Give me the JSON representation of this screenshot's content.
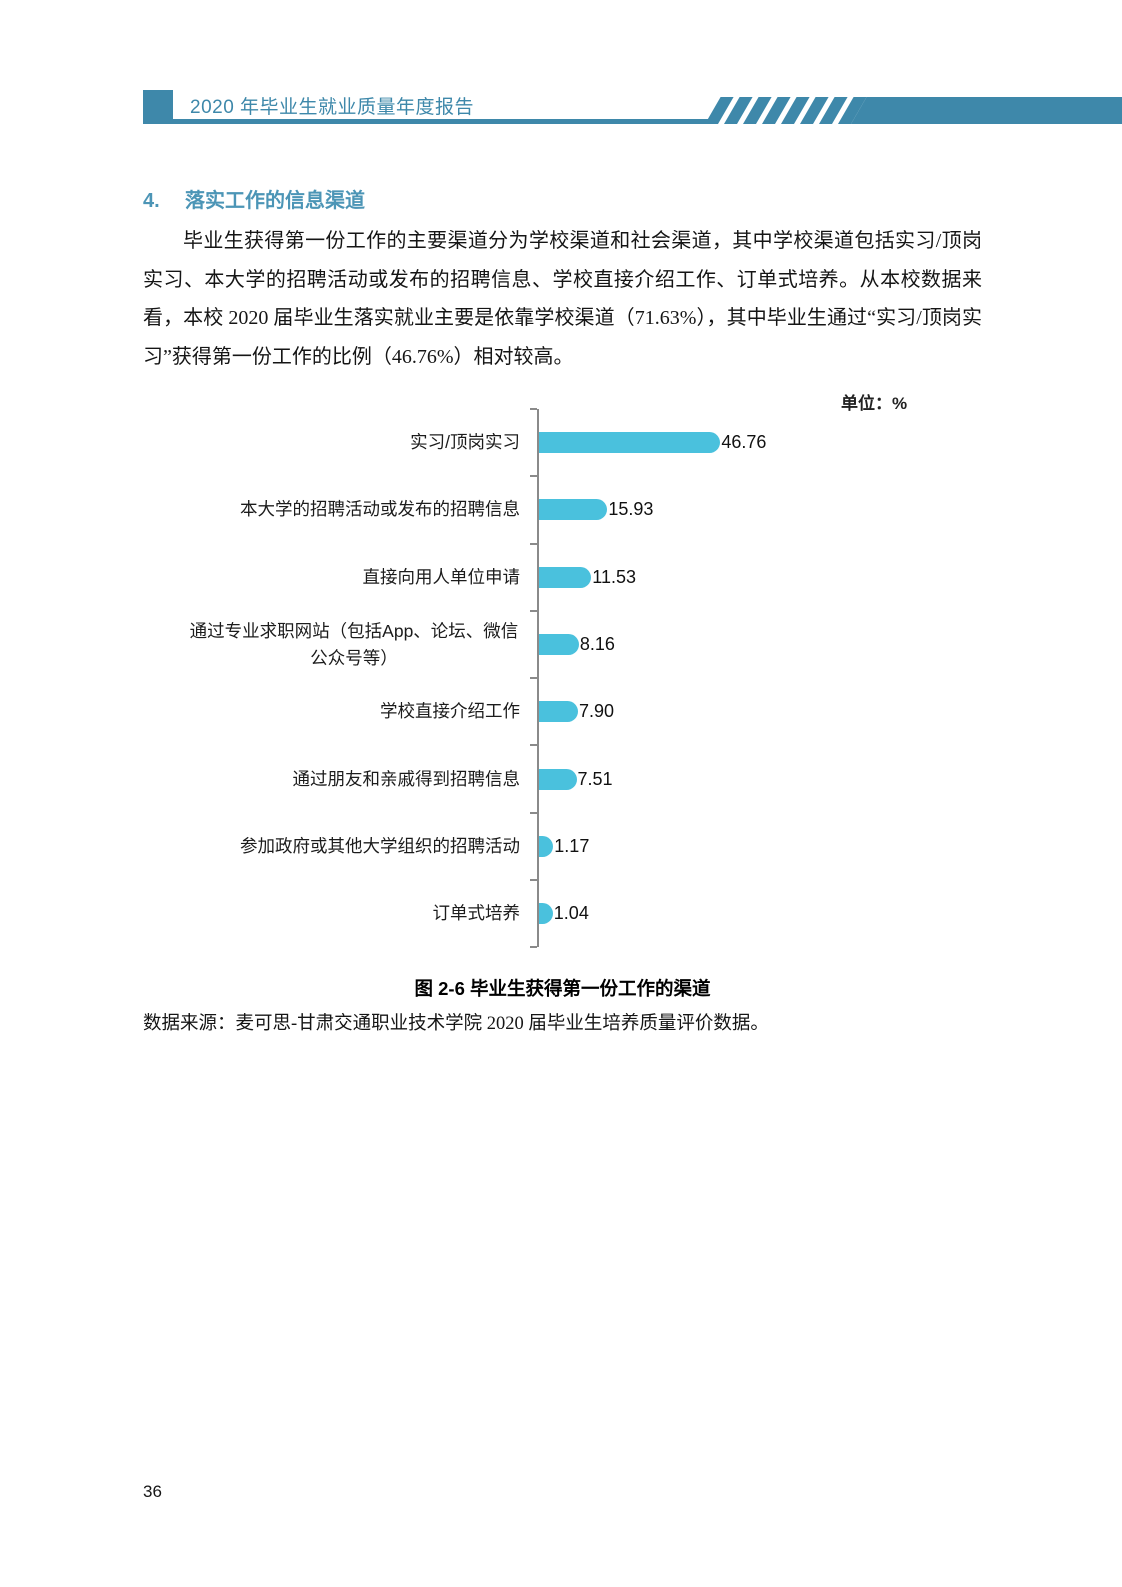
{
  "colors": {
    "accent_teal": "#3E88AA",
    "heading_teal": "#4C95B6",
    "bar_cyan": "#4AC1DD",
    "axis_gray": "#8a8a8a"
  },
  "header": {
    "title": "2020 年毕业生就业质量年度报告"
  },
  "section": {
    "number": "4.",
    "title": "落实工作的信息渠道"
  },
  "paragraph": {
    "text": "毕业生获得第一份工作的主要渠道分为学校渠道和社会渠道，其中学校渠道包括实习/顶岗实习、本大学的招聘活动或发布的招聘信息、学校直接介绍工作、订单式培养。从本校数据来看，本校 2020 届毕业生落实就业主要是依靠学校渠道（71.63%），其中毕业生通过“实习/顶岗实习”获得第一份工作的比例（46.76%）相对较高。"
  },
  "chart": {
    "unit_label": "单位：%"
  },
  "chart_data": {
    "type": "bar",
    "orientation": "horizontal",
    "title": "图 2-6  毕业生获得第一份工作的渠道",
    "unit": "%",
    "xlim": [
      0,
      50
    ],
    "grid": false,
    "categories": [
      "实习/顶岗实习",
      "本大学的招聘活动或发布的招聘信息",
      "直接向用人单位申请",
      "通过专业求职网站（包括App、论坛、微信公众号等）",
      "学校直接介绍工作",
      "通过朋友和亲戚得到招聘信息",
      "参加政府或其他大学组织的招聘活动",
      "订单式培养"
    ],
    "values": [
      46.76,
      15.93,
      11.53,
      8.16,
      7.9,
      7.51,
      1.17,
      1.04
    ],
    "value_labels": [
      "46.76",
      "15.93",
      "11.53",
      "8.16",
      "7.90",
      "7.51",
      "1.17",
      "1.04"
    ]
  },
  "caption": {
    "text": "图 2-6  毕业生获得第一份工作的渠道"
  },
  "source": {
    "text": "数据来源：麦可思-甘肃交通职业技术学院 2020 届毕业生培养质量评价数据。"
  },
  "page": {
    "number": "36"
  }
}
